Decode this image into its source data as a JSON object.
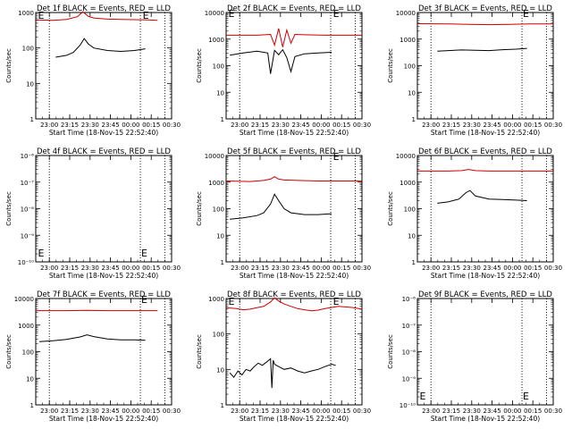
{
  "chart_data": [
    {
      "type": "line",
      "title": "Det 1f BLACK = Events, RED = LLD",
      "xlabel": "Start Time (18-Nov-15 22:52:40)",
      "ylabel": "Counts/sec",
      "y_scale": "log",
      "ylim": [
        1,
        1000
      ],
      "y_ticks": [
        "1",
        "10",
        "100",
        "1000"
      ],
      "x_ticks": [
        "23:00",
        "23:15",
        "23:30",
        "23:45",
        "00:00",
        "00:15",
        "00:30"
      ],
      "xlim_min": [
        -2.67,
        97.33
      ],
      "vlines_min": [
        7.33,
        74.33,
        92.33
      ],
      "e_markers": [
        {
          "x_min": -1,
          "y": 800
        },
        {
          "x_min": 76,
          "y": 800
        }
      ],
      "series": [
        {
          "color": "#cc0000",
          "x_min": [
            -2.67,
            10,
            20,
            28,
            32,
            36,
            40,
            50,
            60,
            70,
            80,
            87
          ],
          "values": [
            620,
            600,
            640,
            760,
            1050,
            780,
            700,
            650,
            640,
            630,
            620,
            600
          ]
        },
        {
          "color": "#000000",
          "x_min": [
            12,
            20,
            25,
            30,
            33,
            36,
            40,
            50,
            60,
            70,
            78
          ],
          "values": [
            55,
            62,
            75,
            120,
            185,
            130,
            100,
            85,
            80,
            85,
            95
          ]
        }
      ]
    },
    {
      "type": "line",
      "title": "Det 2f BLACK = Events, RED = LLD",
      "xlabel": "Start Time (18-Nov-15 22:52:40)",
      "ylabel": "Counts/sec",
      "y_scale": "log",
      "ylim": [
        1,
        10000
      ],
      "y_ticks": [
        "1",
        "10",
        "100",
        "1000",
        "10000"
      ],
      "x_ticks": [
        "23:00",
        "23:15",
        "23:30",
        "23:45",
        "00:00",
        "00:15",
        "00:30"
      ],
      "xlim_min": [
        -2.67,
        97.33
      ],
      "vlines_min": [
        7.33,
        74.33,
        92.33
      ],
      "e_markers": [
        {
          "x_min": -1,
          "y": 8500
        },
        {
          "x_min": 76,
          "y": 8500
        }
      ],
      "series": [
        {
          "color": "#cc0000",
          "x_min": [
            -2.67,
            20,
            30,
            33,
            36,
            39,
            42,
            45,
            48,
            55,
            70,
            97.33
          ],
          "values": [
            1400,
            1400,
            1500,
            600,
            2500,
            500,
            2200,
            700,
            1500,
            1450,
            1400,
            1400
          ]
        },
        {
          "color": "#000000",
          "x_min": [
            0,
            10,
            20,
            25,
            28,
            30,
            33,
            36,
            39,
            42,
            45,
            48,
            55,
            65,
            75
          ],
          "values": [
            250,
            300,
            350,
            320,
            300,
            50,
            380,
            260,
            400,
            200,
            60,
            220,
            280,
            300,
            320
          ]
        }
      ]
    },
    {
      "type": "line",
      "title": "Det 3f BLACK = Events, RED = LLD",
      "xlabel": "Start Time (18-Nov-15 22:52:40)",
      "ylabel": "Counts/sec",
      "y_scale": "log",
      "ylim": [
        1,
        10000
      ],
      "y_ticks": [
        "1",
        "10",
        "100",
        "1000",
        "10000"
      ],
      "x_ticks": [
        "23:00",
        "23:15",
        "23:30",
        "23:45",
        "00:00",
        "00:15",
        "00:30"
      ],
      "xlim_min": [
        -2.67,
        97.33
      ],
      "vlines_min": [
        7.33,
        74.33,
        92.33
      ],
      "e_markers": [
        {
          "x_min": 75,
          "y": 8500
        }
      ],
      "series": [
        {
          "color": "#cc0000",
          "x_min": [
            -2.67,
            20,
            35,
            50,
            65,
            80,
            97.33
          ],
          "values": [
            3800,
            3700,
            3600,
            3500,
            3600,
            3700,
            3700
          ]
        },
        {
          "color": "#000000",
          "x_min": [
            12,
            20,
            30,
            40,
            50,
            60,
            70,
            78
          ],
          "values": [
            350,
            370,
            390,
            380,
            370,
            400,
            420,
            450
          ]
        }
      ]
    },
    {
      "type": "line",
      "title": "Det 4f BLACK = Events, RED = LLD",
      "xlabel": "Start Time (18-Nov-15 22:52:40)",
      "ylabel": "Counts/sec",
      "y_scale": "log",
      "ylim": [
        1e-10,
        1e-06
      ],
      "y_ticks": [
        "10⁻¹⁰",
        "10⁻⁹",
        "10⁻⁸",
        "10⁻⁷",
        "10⁻⁶"
      ],
      "x_ticks": [
        "23:00",
        "23:15",
        "23:30",
        "23:45",
        "00:00",
        "00:15",
        "00:30"
      ],
      "xlim_min": [
        -2.67,
        97.33
      ],
      "vlines_min": [
        7.33,
        74.33,
        92.33
      ],
      "e_markers": [
        {
          "x_min": -1,
          "y": 2e-10
        },
        {
          "x_min": 75,
          "y": 2e-10
        }
      ],
      "series": []
    },
    {
      "type": "line",
      "title": "Det 5f BLACK = Events, RED = LLD",
      "xlabel": "Start Time (18-Nov-15 22:52:40)",
      "ylabel": "Counts/sec",
      "y_scale": "log",
      "ylim": [
        1,
        10000
      ],
      "y_ticks": [
        "1",
        "10",
        "100",
        "1000",
        "10000"
      ],
      "x_ticks": [
        "23:00",
        "23:15",
        "23:30",
        "23:45",
        "00:00",
        "00:15",
        "00:30"
      ],
      "xlim_min": [
        -2.67,
        97.33
      ],
      "vlines_min": [
        7.33,
        74.33,
        92.33
      ],
      "e_markers": [
        {
          "x_min": 76,
          "y": 8500
        }
      ],
      "series": [
        {
          "color": "#cc0000",
          "x_min": [
            -2.67,
            15,
            25,
            30,
            33,
            36,
            40,
            50,
            65,
            80,
            97.33
          ],
          "values": [
            1100,
            1050,
            1150,
            1300,
            1600,
            1300,
            1200,
            1150,
            1100,
            1100,
            1100
          ]
        },
        {
          "color": "#000000",
          "x_min": [
            0,
            10,
            20,
            25,
            30,
            33,
            36,
            40,
            45,
            55,
            65,
            75
          ],
          "values": [
            40,
            45,
            55,
            70,
            150,
            350,
            200,
            100,
            70,
            60,
            60,
            65
          ]
        }
      ]
    },
    {
      "type": "line",
      "title": "Det 6f BLACK = Events, RED = LLD",
      "xlabel": "Start Time (18-Nov-15 22:52:40)",
      "ylabel": "Counts/sec",
      "y_scale": "log",
      "ylim": [
        1,
        10000
      ],
      "y_ticks": [
        "1",
        "10",
        "100",
        "1000",
        "10000"
      ],
      "x_ticks": [
        "23:00",
        "23:15",
        "23:30",
        "23:45",
        "00:00",
        "00:15",
        "00:30"
      ],
      "xlim_min": [
        -2.67,
        97.33
      ],
      "vlines_min": [
        7.33,
        74.33,
        92.33
      ],
      "e_markers": [],
      "series": [
        {
          "color": "#cc0000",
          "x_min": [
            -2.67,
            20,
            30,
            35,
            40,
            50,
            70,
            97.33
          ],
          "values": [
            2600,
            2600,
            2700,
            3000,
            2700,
            2600,
            2600,
            2600
          ]
        },
        {
          "color": "#000000",
          "x_min": [
            12,
            20,
            28,
            33,
            36,
            40,
            50,
            60,
            70,
            78
          ],
          "values": [
            160,
            180,
            230,
            400,
            480,
            300,
            230,
            220,
            210,
            200
          ]
        }
      ]
    },
    {
      "type": "line",
      "title": "Det 7f BLACK = Events, RED = LLD",
      "xlabel": "Start Time (18-Nov-15 22:52:40)",
      "ylabel": "Counts/sec",
      "y_scale": "log",
      "ylim": [
        1,
        10000
      ],
      "y_ticks": [
        "1",
        "10",
        "100",
        "1000",
        "10000"
      ],
      "x_ticks": [
        "23:00",
        "23:15",
        "23:30",
        "23:45",
        "00:00",
        "00:15",
        "00:30"
      ],
      "xlim_min": [
        -2.67,
        97.33
      ],
      "vlines_min": [
        7.33,
        74.33,
        92.33
      ],
      "e_markers": [
        {
          "x_min": 75,
          "y": 8500
        }
      ],
      "series": [
        {
          "color": "#cc0000",
          "x_min": [
            -2.67,
            20,
            35,
            50,
            70,
            87
          ],
          "values": [
            3500,
            3500,
            3600,
            3500,
            3500,
            3500
          ]
        },
        {
          "color": "#000000",
          "x_min": [
            0,
            10,
            20,
            30,
            35,
            40,
            50,
            60,
            70,
            78
          ],
          "values": [
            240,
            260,
            290,
            360,
            430,
            370,
            300,
            280,
            280,
            270
          ]
        }
      ]
    },
    {
      "type": "line",
      "title": "Det 8f BLACK = Events, RED = LLD",
      "xlabel": "Start Time (18-Nov-15 22:52:40)",
      "ylabel": "Counts/sec",
      "y_scale": "log",
      "ylim": [
        1,
        1000
      ],
      "y_ticks": [
        "1",
        "10",
        "100",
        "1000"
      ],
      "x_ticks": [
        "23:00",
        "23:15",
        "23:30",
        "23:45",
        "00:00",
        "00:15",
        "00:30"
      ],
      "xlim_min": [
        -2.67,
        97.33
      ],
      "vlines_min": [
        7.33,
        74.33,
        92.33
      ],
      "e_markers": [
        {
          "x_min": -1,
          "y": 800
        },
        {
          "x_min": 76,
          "y": 800
        }
      ],
      "series": [
        {
          "color": "#cc0000",
          "x_min": [
            -2.67,
            5,
            10,
            15,
            20,
            25,
            30,
            33,
            36,
            40,
            45,
            50,
            55,
            60,
            65,
            70,
            75,
            80,
            85,
            90,
            97.33
          ],
          "values": [
            550,
            520,
            480,
            500,
            550,
            600,
            800,
            1050,
            850,
            700,
            600,
            520,
            480,
            450,
            470,
            520,
            560,
            600,
            580,
            560,
            500
          ]
        },
        {
          "color": "#000000",
          "x_min": [
            0,
            3,
            6,
            9,
            12,
            15,
            18,
            21,
            24,
            27,
            30,
            31,
            32,
            33,
            36,
            40,
            45,
            50,
            55,
            60,
            65,
            70,
            75,
            78
          ],
          "values": [
            8,
            6,
            9,
            7,
            10,
            9,
            12,
            15,
            13,
            16,
            20,
            3,
            18,
            14,
            12,
            10,
            11,
            9,
            8,
            9,
            10,
            12,
            14,
            13
          ]
        }
      ]
    },
    {
      "type": "line",
      "title": "Det 9f BLACK = Events, RED = LLD",
      "xlabel": "Start Time (18-Nov-15 22:52:40)",
      "ylabel": "Counts/sec",
      "y_scale": "log",
      "ylim": [
        1e-10,
        1e-06
      ],
      "y_ticks": [
        "10⁻¹⁰",
        "10⁻⁹",
        "10⁻⁸",
        "10⁻⁷",
        "10⁻⁶"
      ],
      "x_ticks": [
        "23:00",
        "23:15",
        "23:30",
        "23:45",
        "00:00",
        "00:15",
        "00:30"
      ],
      "xlim_min": [
        -2.67,
        97.33
      ],
      "vlines_min": [
        7.33,
        74.33,
        92.33
      ],
      "e_markers": [
        {
          "x_min": -1,
          "y": 2e-10
        },
        {
          "x_min": 75,
          "y": 2e-10
        }
      ],
      "series": []
    }
  ]
}
